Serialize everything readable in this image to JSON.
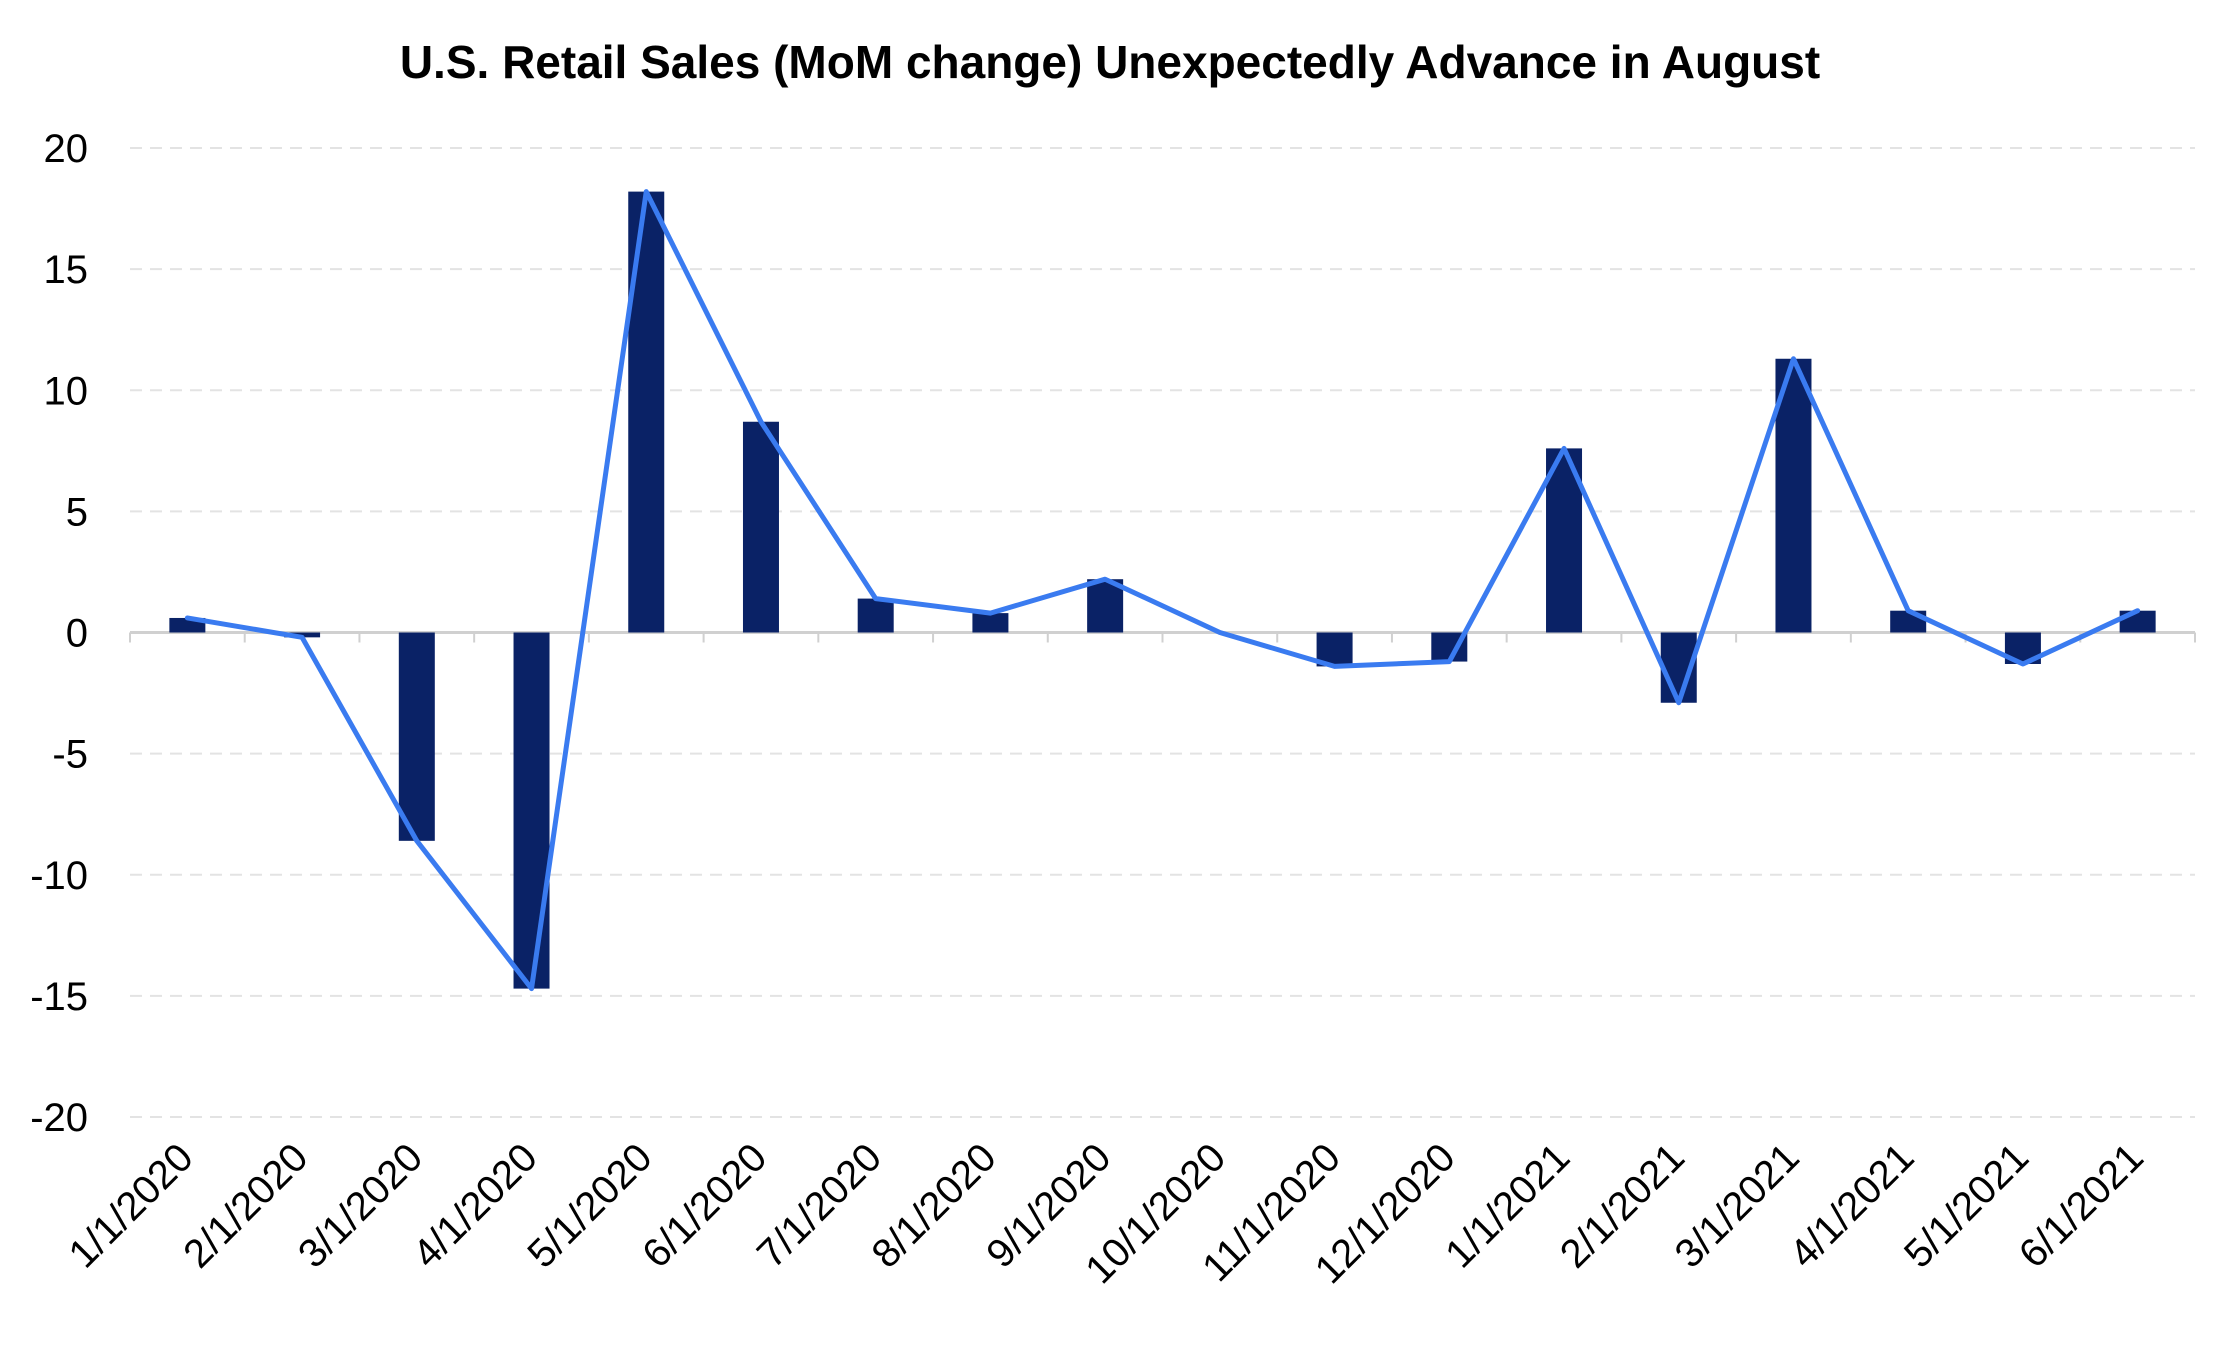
{
  "chart_data": {
    "type": "bar",
    "title": "U.S. Retail Sales (MoM change) Unexpectedly Advance in August",
    "xlabel": "",
    "ylabel": "",
    "categories": [
      "1/1/2020",
      "2/1/2020",
      "3/1/2020",
      "4/1/2020",
      "5/1/2020",
      "6/1/2020",
      "7/1/2020",
      "8/1/2020",
      "9/1/2020",
      "10/1/2020",
      "11/1/2020",
      "12/1/2020",
      "1/1/2021",
      "2/1/2021",
      "3/1/2021",
      "4/1/2021",
      "5/1/2021",
      "6/1/2021"
    ],
    "series": [
      {
        "type": "bar",
        "values": [
          0.6,
          -0.2,
          -8.6,
          -14.7,
          18.2,
          8.7,
          1.4,
          0.8,
          2.2,
          0.0,
          -1.4,
          -1.2,
          7.6,
          -2.9,
          11.3,
          0.9,
          -1.3,
          0.9
        ],
        "color": "#0a2266"
      },
      {
        "type": "line",
        "values": [
          0.6,
          -0.2,
          -8.6,
          -14.7,
          18.2,
          8.7,
          1.4,
          0.8,
          2.2,
          0.0,
          -1.4,
          -1.2,
          7.6,
          -2.9,
          11.3,
          0.9,
          -1.3,
          0.9
        ],
        "color": "#3a7bf0"
      }
    ],
    "ylim": [
      -20,
      20
    ],
    "yticks": [
      "20",
      "15",
      "10",
      "5",
      "0",
      "-5",
      "-10",
      "-15",
      "-20"
    ],
    "grid": true,
    "grid_style": "dashed",
    "legend": "none",
    "colors": {
      "bar": "#0a2266",
      "line": "#3a7bf0",
      "grid": "#e3e3e3",
      "axis": "#d0d0d0"
    }
  }
}
